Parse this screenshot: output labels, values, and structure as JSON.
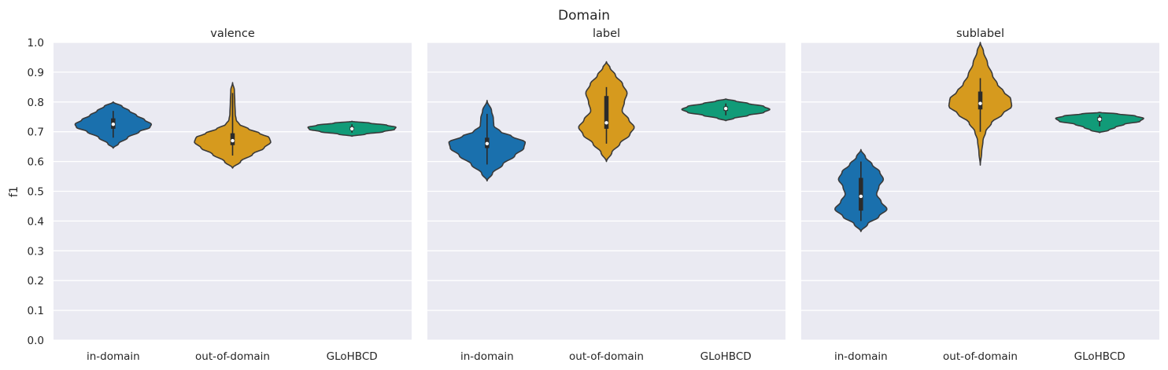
{
  "figure_title": "Domain",
  "colors": {
    "panel_bg": "#eaeaf2",
    "grid": "#ffffff",
    "outline": "#3a3a3a",
    "in-domain": "#1a70ad",
    "out-of-domain": "#d69a1e",
    "GLoHBCD": "#119b78"
  },
  "chart_data": {
    "type": "violin",
    "title": "Domain",
    "ylabel": "f1",
    "ylim": [
      0.0,
      1.0
    ],
    "yticks": [
      "0.0",
      "0.1",
      "0.2",
      "0.3",
      "0.4",
      "0.5",
      "0.6",
      "0.7",
      "0.8",
      "0.9",
      "1.0"
    ],
    "grid": true,
    "categories": [
      "in-domain",
      "out-of-domain",
      "GLoHBCD"
    ],
    "panels": [
      {
        "title": "valence",
        "violins": [
          {
            "category": "in-domain",
            "min": 0.645,
            "max": 0.8,
            "q1": 0.71,
            "q3": 0.745,
            "median": 0.725,
            "whisker": [
              0.68,
              0.77
            ],
            "density": [
              [
                0.645,
                0.0
              ],
              [
                0.66,
                0.12
              ],
              [
                0.68,
                0.32
              ],
              [
                0.7,
                0.58
              ],
              [
                0.715,
                0.82
              ],
              [
                0.725,
                0.85
              ],
              [
                0.74,
                0.7
              ],
              [
                0.755,
                0.52
              ],
              [
                0.77,
                0.36
              ],
              [
                0.785,
                0.2
              ],
              [
                0.8,
                0.0
              ]
            ]
          },
          {
            "category": "out-of-domain",
            "min": 0.578,
            "max": 0.865,
            "q1": 0.655,
            "q3": 0.695,
            "median": 0.67,
            "whisker": [
              0.62,
              0.83
            ],
            "density": [
              [
                0.578,
                0.0
              ],
              [
                0.6,
                0.18
              ],
              [
                0.625,
                0.45
              ],
              [
                0.645,
                0.7
              ],
              [
                0.665,
                0.85
              ],
              [
                0.68,
                0.82
              ],
              [
                0.695,
                0.6
              ],
              [
                0.71,
                0.35
              ],
              [
                0.725,
                0.15
              ],
              [
                0.74,
                0.08
              ],
              [
                0.76,
                0.06
              ],
              [
                0.8,
                0.05
              ],
              [
                0.84,
                0.04
              ],
              [
                0.865,
                0.0
              ]
            ]
          },
          {
            "category": "GLoHBCD",
            "min": 0.685,
            "max": 0.735,
            "q1": 0.705,
            "q3": 0.717,
            "median": 0.71,
            "whisker": [
              0.697,
              0.725
            ],
            "density": [
              [
                0.685,
                0.0
              ],
              [
                0.692,
                0.3
              ],
              [
                0.7,
                0.7
              ],
              [
                0.708,
                0.95
              ],
              [
                0.715,
                0.98
              ],
              [
                0.722,
                0.78
              ],
              [
                0.729,
                0.4
              ],
              [
                0.735,
                0.0
              ]
            ]
          }
        ]
      },
      {
        "title": "label",
        "violins": [
          {
            "category": "in-domain",
            "min": 0.535,
            "max": 0.805,
            "q1": 0.645,
            "q3": 0.68,
            "median": 0.66,
            "whisker": [
              0.59,
              0.76
            ],
            "density": [
              [
                0.535,
                0.0
              ],
              [
                0.56,
                0.12
              ],
              [
                0.59,
                0.35
              ],
              [
                0.62,
                0.62
              ],
              [
                0.645,
                0.82
              ],
              [
                0.665,
                0.85
              ],
              [
                0.685,
                0.55
              ],
              [
                0.7,
                0.3
              ],
              [
                0.72,
                0.15
              ],
              [
                0.745,
                0.14
              ],
              [
                0.77,
                0.1
              ],
              [
                0.805,
                0.0
              ]
            ]
          },
          {
            "category": "out-of-domain",
            "min": 0.6,
            "max": 0.935,
            "q1": 0.71,
            "q3": 0.82,
            "median": 0.73,
            "whisker": [
              0.66,
              0.85
            ],
            "density": [
              [
                0.6,
                0.0
              ],
              [
                0.63,
                0.12
              ],
              [
                0.66,
                0.3
              ],
              [
                0.69,
                0.52
              ],
              [
                0.715,
                0.62
              ],
              [
                0.74,
                0.5
              ],
              [
                0.77,
                0.35
              ],
              [
                0.8,
                0.4
              ],
              [
                0.83,
                0.46
              ],
              [
                0.86,
                0.36
              ],
              [
                0.89,
                0.2
              ],
              [
                0.915,
                0.08
              ],
              [
                0.935,
                0.0
              ]
            ]
          },
          {
            "category": "GLoHBCD",
            "min": 0.737,
            "max": 0.81,
            "q1": 0.77,
            "q3": 0.785,
            "median": 0.778,
            "whisker": [
              0.755,
              0.795
            ],
            "density": [
              [
                0.737,
                0.0
              ],
              [
                0.745,
                0.18
              ],
              [
                0.755,
                0.5
              ],
              [
                0.765,
                0.85
              ],
              [
                0.775,
                0.98
              ],
              [
                0.785,
                0.85
              ],
              [
                0.795,
                0.5
              ],
              [
                0.803,
                0.22
              ],
              [
                0.81,
                0.0
              ]
            ]
          }
        ]
      },
      {
        "title": "sublabel",
        "violins": [
          {
            "category": "in-domain",
            "min": 0.365,
            "max": 0.64,
            "q1": 0.435,
            "q3": 0.545,
            "median": 0.483,
            "whisker": [
              0.4,
              0.6
            ],
            "density": [
              [
                0.365,
                0.0
              ],
              [
                0.39,
                0.15
              ],
              [
                0.415,
                0.4
              ],
              [
                0.44,
                0.58
              ],
              [
                0.465,
                0.45
              ],
              [
                0.49,
                0.35
              ],
              [
                0.515,
                0.4
              ],
              [
                0.54,
                0.5
              ],
              [
                0.565,
                0.42
              ],
              [
                0.59,
                0.25
              ],
              [
                0.615,
                0.1
              ],
              [
                0.64,
                0.0
              ]
            ]
          },
          {
            "category": "out-of-domain",
            "min": 0.588,
            "max": 1.0,
            "q1": 0.775,
            "q3": 0.835,
            "median": 0.795,
            "whisker": [
              0.7,
              0.88
            ],
            "density": [
              [
                0.588,
                0.0
              ],
              [
                0.63,
                0.03
              ],
              [
                0.67,
                0.06
              ],
              [
                0.7,
                0.12
              ],
              [
                0.73,
                0.25
              ],
              [
                0.76,
                0.5
              ],
              [
                0.785,
                0.7
              ],
              [
                0.81,
                0.68
              ],
              [
                0.835,
                0.52
              ],
              [
                0.86,
                0.38
              ],
              [
                0.89,
                0.27
              ],
              [
                0.93,
                0.16
              ],
              [
                0.97,
                0.07
              ],
              [
                1.0,
                0.0
              ]
            ]
          },
          {
            "category": "GLoHBCD",
            "min": 0.697,
            "max": 0.765,
            "q1": 0.735,
            "q3": 0.75,
            "median": 0.742,
            "whisker": [
              0.718,
              0.757
            ],
            "density": [
              [
                0.697,
                0.0
              ],
              [
                0.705,
                0.2
              ],
              [
                0.715,
                0.35
              ],
              [
                0.725,
                0.55
              ],
              [
                0.735,
                0.9
              ],
              [
                0.745,
                0.98
              ],
              [
                0.753,
                0.8
              ],
              [
                0.76,
                0.4
              ],
              [
                0.765,
                0.0
              ]
            ]
          }
        ]
      }
    ]
  }
}
